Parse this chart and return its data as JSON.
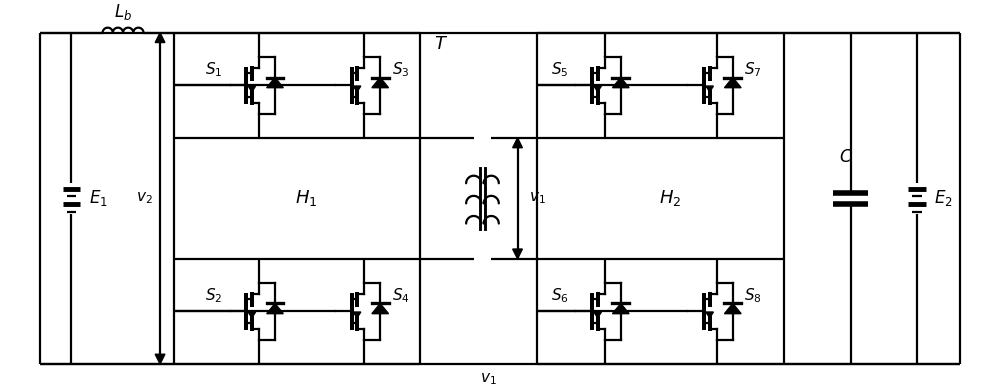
{
  "fig_width": 10.0,
  "fig_height": 3.91,
  "dpi": 100,
  "line_color": "black",
  "lw": 1.6,
  "bg_color": "white"
}
